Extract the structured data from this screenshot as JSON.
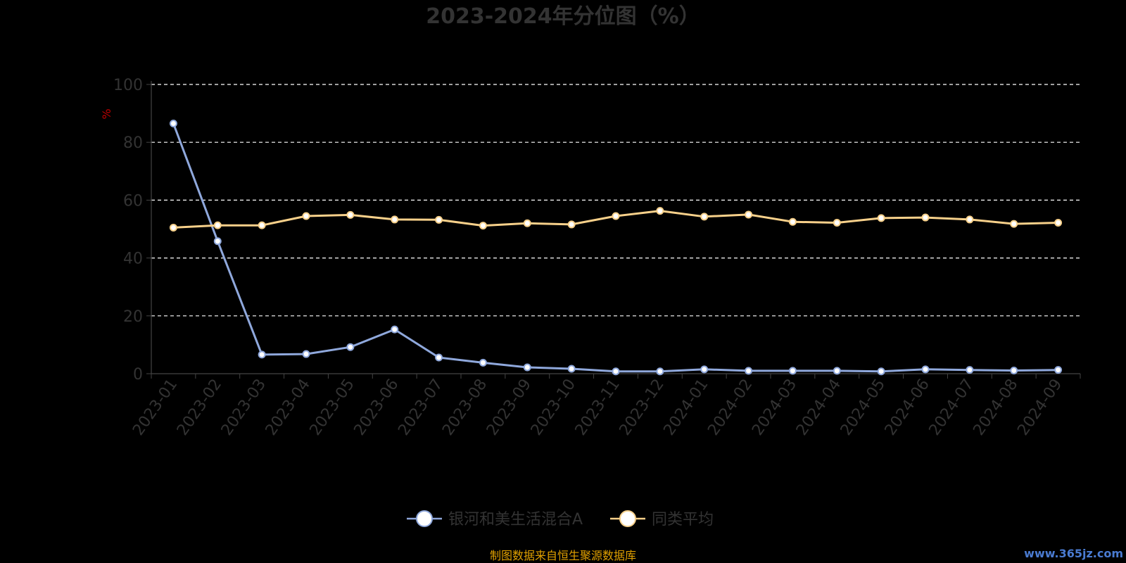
{
  "chart_data": {
    "type": "line",
    "title": "2023-2024年分位图（%）",
    "ylabel": "%",
    "ylim": [
      0,
      100
    ],
    "yticks": [
      "0",
      "20",
      "40",
      "60",
      "80",
      "100"
    ],
    "grid": true,
    "legend_position": "bottom",
    "categories": [
      "2023-01",
      "2023-02",
      "2023-03",
      "2023-04",
      "2023-05",
      "2023-06",
      "2023-07",
      "2023-08",
      "2023-09",
      "2023-10",
      "2023-11",
      "2023-12",
      "2024-01",
      "2024-02",
      "2024-03",
      "2024-04",
      "2024-05",
      "2024-06",
      "2024-07",
      "2024-08",
      "2024-09"
    ],
    "series": [
      {
        "name": "银河和美生活混合A",
        "color": "#8fa8dc",
        "values": [
          86.5,
          45.8,
          6.6,
          6.8,
          9.2,
          15.3,
          5.6,
          3.8,
          2.2,
          1.7,
          0.8,
          0.8,
          1.5,
          1.0,
          1.0,
          1.0,
          0.8,
          1.5,
          1.3,
          1.1,
          1.3
        ]
      },
      {
        "name": "同类平均",
        "color": "#f7d08a",
        "values": [
          50.5,
          51.3,
          51.3,
          54.5,
          54.9,
          53.3,
          53.2,
          51.2,
          52.0,
          51.6,
          54.5,
          56.3,
          54.3,
          55.0,
          52.5,
          52.2,
          53.8,
          54.0,
          53.3,
          51.8,
          52.2
        ]
      }
    ]
  },
  "source_note": "制图数据来自恒生聚源数据库",
  "watermark": "www.365jz.com"
}
